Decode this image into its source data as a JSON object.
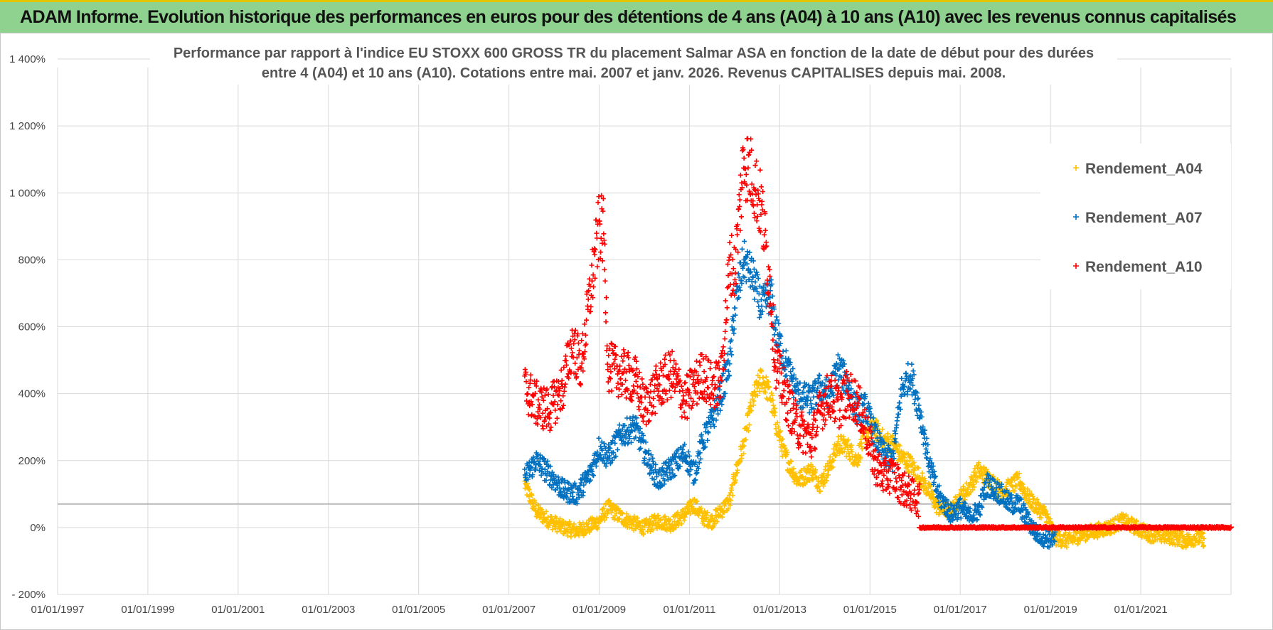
{
  "header": {
    "title": "ADAM Informe. Evolution historique des performances en euros pour des détentions de 4 ans (A04) à 10 ans (A10) avec les revenus connus capitalisés"
  },
  "colors": {
    "banner": "#8fd18f",
    "A04": "#ffc000",
    "A07": "#0070c0",
    "A10": "#ff0000"
  },
  "chart_data": {
    "type": "scatter",
    "title_line1": "Performance par rapport à l'indice EU STOXX 600 GROSS TR  du placement Salmar ASA en fonction de la date de début pour des durées",
    "title_line2": "entre 4 (A04) et 10 ans (A10). Cotations entre mai. 2007 et janv. 2026. Revenus CAPITALISES depuis mai. 2008.",
    "xlabel": "",
    "ylabel": "",
    "x_ticks": [
      "01/01/1997",
      "01/01/1999",
      "01/01/2001",
      "01/01/2003",
      "01/01/2005",
      "01/01/2007",
      "01/01/2009",
      "01/01/2011",
      "01/01/2013",
      "01/01/2015",
      "01/01/2017",
      "01/01/2019",
      "01/01/2021"
    ],
    "xlim": [
      1997.0,
      2023.0
    ],
    "y_ticks": [
      "1 400%",
      "1 200%",
      "1 000%",
      "800%",
      "600%",
      "400%",
      "200%",
      "0%",
      "- 200%"
    ],
    "ylim": [
      -200,
      1400
    ],
    "legend": [
      "Rendement_A04",
      "Rendement_A07",
      "Rendement_A10"
    ],
    "series": [
      {
        "name": "Rendement_A04",
        "x": [
          2007.35,
          2007.6,
          2007.9,
          2008.2,
          2008.5,
          2008.8,
          2009.0,
          2009.2,
          2009.5,
          2009.8,
          2010.0,
          2010.3,
          2010.6,
          2010.9,
          2011.1,
          2011.3,
          2011.5,
          2011.7,
          2011.9,
          2012.0,
          2012.2,
          2012.4,
          2012.6,
          2012.8,
          2012.9,
          2013.1,
          2013.4,
          2013.7,
          2013.9,
          2014.1,
          2014.3,
          2014.5,
          2014.7,
          2014.9,
          2015.1,
          2015.3,
          2015.5,
          2015.7,
          2015.9,
          2016.1,
          2016.3,
          2016.5,
          2016.8,
          2017.0,
          2017.2,
          2017.4,
          2017.6,
          2017.9,
          2018.1,
          2018.3,
          2018.5,
          2018.7,
          2018.9,
          2019.1,
          2019.4,
          2019.7,
          2020.0,
          2020.3,
          2020.6,
          2020.9,
          2021.2,
          2021.5,
          2021.8,
          2022.0,
          2022.2,
          2022.4
        ],
        "y": [
          130,
          50,
          20,
          0,
          -10,
          5,
          20,
          60,
          30,
          10,
          0,
          20,
          10,
          40,
          70,
          30,
          20,
          50,
          80,
          150,
          250,
          380,
          450,
          390,
          320,
          220,
          140,
          170,
          130,
          180,
          250,
          240,
          200,
          280,
          300,
          260,
          250,
          210,
          190,
          150,
          110,
          60,
          50,
          90,
          120,
          170,
          150,
          110,
          120,
          140,
          90,
          60,
          40,
          -30,
          -40,
          -20,
          -10,
          0,
          20,
          0,
          -20,
          -25,
          -30,
          -40,
          -30,
          -35
        ],
        "spread": 22
      },
      {
        "name": "Rendement_A07",
        "x": [
          2007.35,
          2007.6,
          2007.9,
          2008.2,
          2008.5,
          2008.8,
          2009.0,
          2009.2,
          2009.5,
          2009.8,
          2010.0,
          2010.3,
          2010.6,
          2010.9,
          2011.1,
          2011.3,
          2011.5,
          2011.7,
          2011.9,
          2012.0,
          2012.2,
          2012.4,
          2012.6,
          2012.8,
          2012.9,
          2013.1,
          2013.4,
          2013.7,
          2013.9,
          2014.1,
          2014.3,
          2014.5,
          2014.7,
          2014.9,
          2015.1,
          2015.3,
          2015.5,
          2015.7,
          2015.9,
          2016.1,
          2016.3,
          2016.5,
          2016.8,
          2017.0,
          2017.2,
          2017.4,
          2017.6,
          2017.9,
          2018.1,
          2018.3,
          2018.5,
          2018.7,
          2018.9,
          2019.1
        ],
        "y": [
          150,
          200,
          160,
          110,
          100,
          160,
          240,
          210,
          280,
          300,
          230,
          140,
          180,
          220,
          160,
          260,
          320,
          400,
          500,
          650,
          800,
          750,
          660,
          700,
          600,
          500,
          400,
          380,
          420,
          400,
          480,
          430,
          350,
          360,
          280,
          220,
          200,
          410,
          460,
          350,
          200,
          100,
          40,
          60,
          30,
          50,
          130,
          100,
          70,
          70,
          20,
          -20,
          -30,
          -35
        ],
        "spread": 28
      },
      {
        "name": "Rendement_A10",
        "x": [
          2007.35,
          2007.6,
          2007.9,
          2008.2,
          2008.4,
          2008.6,
          2008.8,
          2009.0,
          2009.1,
          2009.2,
          2009.5,
          2009.8,
          2010.0,
          2010.3,
          2010.6,
          2010.9,
          2011.1,
          2011.3,
          2011.5,
          2011.7,
          2011.9,
          2012.0,
          2012.2,
          2012.4,
          2012.6,
          2012.8,
          2012.9,
          2013.1,
          2013.4,
          2013.7,
          2013.9,
          2014.1,
          2014.3,
          2014.5,
          2014.7,
          2014.9,
          2015.1,
          2015.3,
          2015.5,
          2015.7,
          2015.9,
          2016.0,
          2016.1
        ],
        "y": [
          420,
          370,
          350,
          420,
          550,
          480,
          700,
          900,
          880,
          480,
          460,
          440,
          360,
          420,
          460,
          380,
          420,
          460,
          420,
          440,
          800,
          760,
          1100,
          1050,
          950,
          700,
          500,
          400,
          300,
          260,
          350,
          400,
          360,
          400,
          380,
          300,
          190,
          150,
          160,
          120,
          100,
          90,
          80
        ],
        "spread": 45,
        "flat_from": 2016.1,
        "flat_to": 2023.0,
        "flat_value": 0
      }
    ]
  }
}
